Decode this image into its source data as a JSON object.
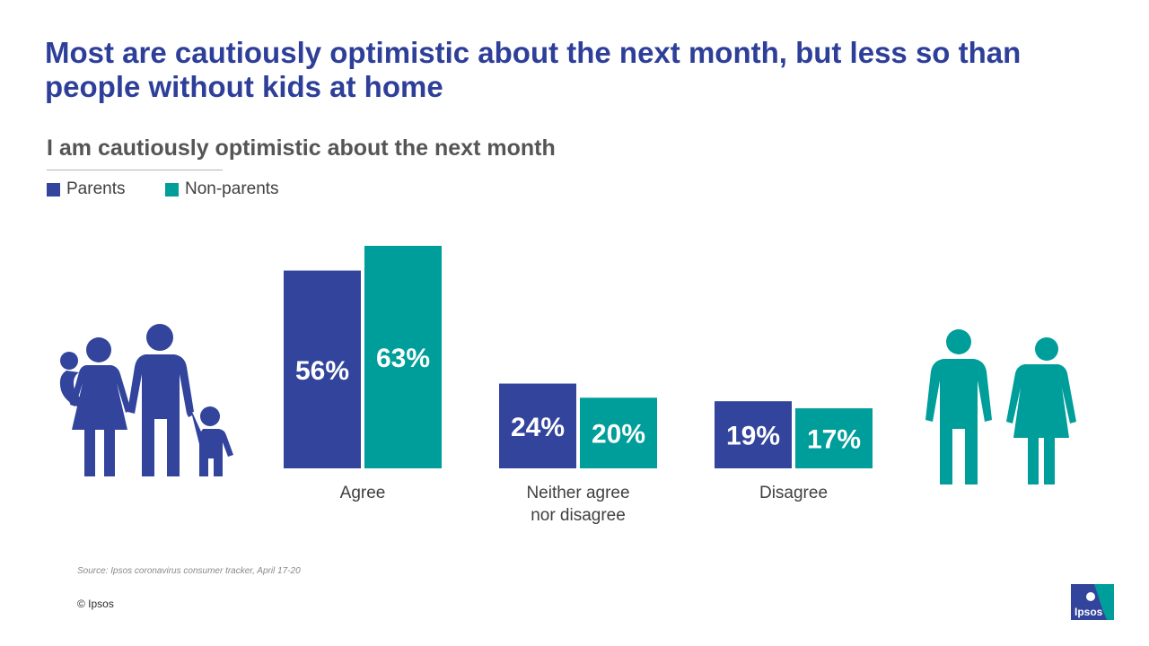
{
  "colors": {
    "title": "#2e3f99",
    "parents": "#32449c",
    "non_parents": "#009e9a"
  },
  "icons": {
    "family": "family-icon",
    "adults": "man-woman-icon",
    "logo": "ipsos-logo"
  },
  "logo_text": "Ipsos",
  "source": "Source: Ipsos coronavirus consumer tracker, April 17-20",
  "copyright": "© Ipsos",
  "chart_data": {
    "type": "bar",
    "title": "Most are cautiously optimistic about the next month, but less so than people without kids at home",
    "subtitle": "I am cautiously optimistic about the next month",
    "categories": [
      {
        "lines": [
          "Agree"
        ]
      },
      {
        "lines": [
          "Neither agree",
          "nor disagree"
        ]
      },
      {
        "lines": [
          "Disagree"
        ]
      }
    ],
    "series": [
      {
        "name": "Parents",
        "values": [
          56,
          24,
          19
        ],
        "labels": [
          "56%",
          "24%",
          "19%"
        ]
      },
      {
        "name": "Non-parents",
        "values": [
          63,
          20,
          17
        ],
        "labels": [
          "63%",
          "20%",
          "17%"
        ]
      }
    ],
    "ylim": [
      0,
      63
    ],
    "xlabel": "",
    "ylabel": "",
    "legend": "top-left",
    "grid": false
  }
}
